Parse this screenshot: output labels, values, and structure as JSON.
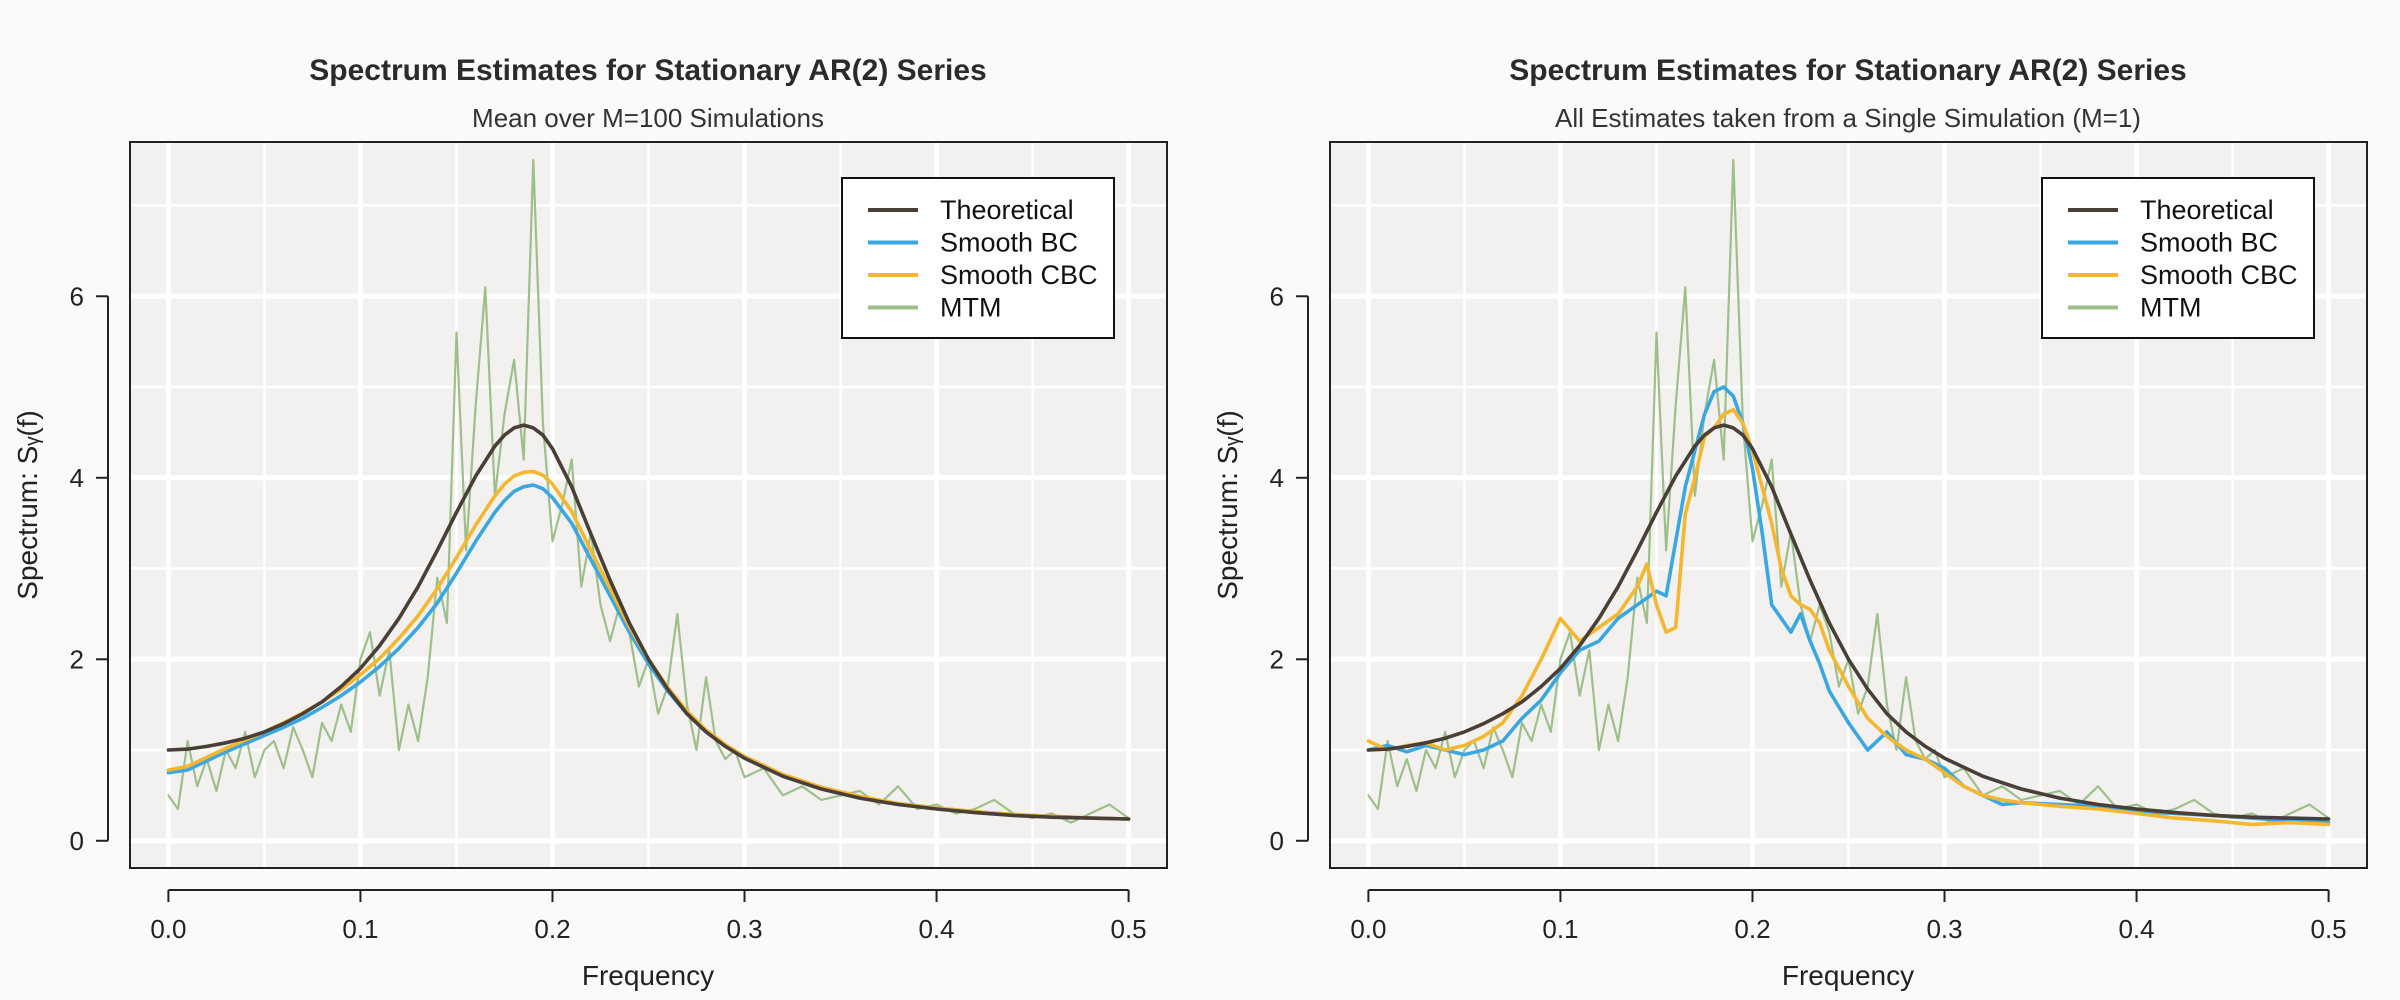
{
  "chart_data": [
    {
      "type": "line",
      "title": "Spectrum Estimates for Stationary AR(2) Series",
      "subtitle": "Mean over M=100 Simulations",
      "xlabel": "Frequency",
      "ylabel": "Spectrum:  Sᵧ(f)",
      "xlim": [
        -0.02,
        0.52
      ],
      "ylim": [
        -0.3,
        7.7
      ],
      "xticks": [
        0.0,
        0.1,
        0.2,
        0.3,
        0.4,
        0.5
      ],
      "xtick_labels": [
        "0.0",
        "0.1",
        "0.2",
        "0.3",
        "0.4",
        "0.5"
      ],
      "yticks": [
        0,
        2,
        4,
        6
      ],
      "ytick_labels": [
        "0",
        "2",
        "4",
        "6"
      ],
      "grid": true,
      "legend_position": "top-right",
      "series": [
        {
          "name": "MTM",
          "color": "#9dbf8a",
          "x": [
            0.0,
            0.005,
            0.01,
            0.015,
            0.02,
            0.025,
            0.03,
            0.035,
            0.04,
            0.045,
            0.05,
            0.055,
            0.06,
            0.065,
            0.07,
            0.075,
            0.08,
            0.085,
            0.09,
            0.095,
            0.1,
            0.105,
            0.11,
            0.115,
            0.12,
            0.125,
            0.13,
            0.135,
            0.14,
            0.145,
            0.15,
            0.155,
            0.16,
            0.165,
            0.17,
            0.175,
            0.18,
            0.185,
            0.19,
            0.195,
            0.2,
            0.205,
            0.21,
            0.215,
            0.22,
            0.225,
            0.23,
            0.235,
            0.24,
            0.245,
            0.25,
            0.255,
            0.26,
            0.265,
            0.27,
            0.275,
            0.28,
            0.285,
            0.29,
            0.295,
            0.3,
            0.31,
            0.32,
            0.33,
            0.34,
            0.35,
            0.36,
            0.37,
            0.38,
            0.39,
            0.4,
            0.41,
            0.42,
            0.43,
            0.44,
            0.45,
            0.46,
            0.47,
            0.48,
            0.49,
            0.5
          ],
          "values": [
            0.5,
            0.35,
            1.1,
            0.6,
            0.9,
            0.55,
            1.0,
            0.8,
            1.2,
            0.7,
            1.0,
            1.1,
            0.8,
            1.25,
            1.0,
            0.7,
            1.3,
            1.1,
            1.5,
            1.2,
            2.0,
            2.3,
            1.6,
            2.1,
            1.0,
            1.5,
            1.1,
            1.8,
            2.9,
            2.4,
            5.6,
            3.2,
            4.8,
            6.1,
            3.8,
            4.7,
            5.3,
            4.2,
            7.5,
            4.6,
            3.3,
            3.7,
            4.2,
            2.8,
            3.4,
            2.6,
            2.2,
            2.6,
            2.3,
            1.7,
            2.0,
            1.4,
            1.7,
            2.5,
            1.5,
            1.0,
            1.8,
            1.1,
            0.9,
            1.0,
            0.7,
            0.8,
            0.5,
            0.6,
            0.45,
            0.5,
            0.55,
            0.4,
            0.6,
            0.35,
            0.4,
            0.3,
            0.35,
            0.45,
            0.3,
            0.25,
            0.3,
            0.2,
            0.3,
            0.4,
            0.25
          ]
        },
        {
          "name": "Smooth BC",
          "color": "#3aa7e0",
          "x": [
            0.0,
            0.01,
            0.02,
            0.03,
            0.04,
            0.05,
            0.06,
            0.07,
            0.08,
            0.09,
            0.1,
            0.11,
            0.12,
            0.13,
            0.14,
            0.15,
            0.16,
            0.17,
            0.175,
            0.18,
            0.185,
            0.19,
            0.195,
            0.2,
            0.21,
            0.22,
            0.23,
            0.24,
            0.25,
            0.26,
            0.27,
            0.28,
            0.29,
            0.3,
            0.32,
            0.34,
            0.36,
            0.38,
            0.4,
            0.42,
            0.44,
            0.46,
            0.48,
            0.5
          ],
          "values": [
            0.75,
            0.78,
            0.88,
            0.98,
            1.07,
            1.16,
            1.25,
            1.35,
            1.47,
            1.6,
            1.75,
            1.92,
            2.12,
            2.35,
            2.62,
            2.95,
            3.3,
            3.62,
            3.75,
            3.85,
            3.9,
            3.92,
            3.88,
            3.78,
            3.5,
            3.1,
            2.7,
            2.3,
            1.95,
            1.65,
            1.4,
            1.2,
            1.05,
            0.92,
            0.72,
            0.58,
            0.48,
            0.41,
            0.36,
            0.32,
            0.29,
            0.27,
            0.25,
            0.24
          ]
        },
        {
          "name": "Smooth CBC",
          "color": "#f5b730",
          "x": [
            0.0,
            0.01,
            0.02,
            0.03,
            0.04,
            0.05,
            0.06,
            0.07,
            0.08,
            0.09,
            0.1,
            0.11,
            0.12,
            0.13,
            0.14,
            0.15,
            0.16,
            0.17,
            0.175,
            0.18,
            0.185,
            0.19,
            0.195,
            0.2,
            0.21,
            0.22,
            0.23,
            0.24,
            0.25,
            0.26,
            0.27,
            0.28,
            0.29,
            0.3,
            0.32,
            0.34,
            0.36,
            0.38,
            0.4,
            0.42,
            0.44,
            0.46,
            0.48,
            0.5
          ],
          "values": [
            0.78,
            0.82,
            0.92,
            1.02,
            1.11,
            1.2,
            1.3,
            1.41,
            1.53,
            1.67,
            1.83,
            2.01,
            2.23,
            2.48,
            2.78,
            3.12,
            3.48,
            3.8,
            3.93,
            4.02,
            4.06,
            4.07,
            4.03,
            3.93,
            3.63,
            3.2,
            2.78,
            2.36,
            2.0,
            1.69,
            1.43,
            1.22,
            1.06,
            0.93,
            0.73,
            0.59,
            0.49,
            0.41,
            0.36,
            0.32,
            0.29,
            0.27,
            0.25,
            0.24
          ]
        },
        {
          "name": "Theoretical",
          "color": "#4a3f36",
          "x": [
            0.0,
            0.01,
            0.02,
            0.03,
            0.04,
            0.05,
            0.06,
            0.07,
            0.08,
            0.09,
            0.1,
            0.11,
            0.12,
            0.13,
            0.14,
            0.15,
            0.16,
            0.17,
            0.175,
            0.18,
            0.185,
            0.19,
            0.195,
            0.2,
            0.21,
            0.22,
            0.23,
            0.24,
            0.25,
            0.26,
            0.27,
            0.28,
            0.29,
            0.3,
            0.32,
            0.34,
            0.36,
            0.38,
            0.4,
            0.42,
            0.44,
            0.46,
            0.48,
            0.5
          ],
          "values": [
            1.0,
            1.01,
            1.04,
            1.08,
            1.13,
            1.2,
            1.29,
            1.4,
            1.53,
            1.7,
            1.9,
            2.15,
            2.45,
            2.8,
            3.2,
            3.62,
            4.02,
            4.35,
            4.47,
            4.55,
            4.58,
            4.55,
            4.47,
            4.32,
            3.9,
            3.38,
            2.87,
            2.4,
            2.0,
            1.67,
            1.4,
            1.2,
            1.04,
            0.91,
            0.71,
            0.57,
            0.47,
            0.4,
            0.35,
            0.31,
            0.28,
            0.26,
            0.25,
            0.24
          ]
        }
      ]
    },
    {
      "type": "line",
      "title": "Spectrum Estimates for Stationary AR(2) Series",
      "subtitle": "All Estimates taken from a Single Simulation (M=1)",
      "xlabel": "Frequency",
      "ylabel": "Spectrum:  Sᵧ(f)",
      "xlim": [
        -0.02,
        0.52
      ],
      "ylim": [
        -0.3,
        7.7
      ],
      "xticks": [
        0.0,
        0.1,
        0.2,
        0.3,
        0.4,
        0.5
      ],
      "xtick_labels": [
        "0.0",
        "0.1",
        "0.2",
        "0.3",
        "0.4",
        "0.5"
      ],
      "yticks": [
        0,
        2,
        4,
        6
      ],
      "ytick_labels": [
        "0",
        "2",
        "4",
        "6"
      ],
      "grid": true,
      "legend_position": "top-right",
      "series": [
        {
          "name": "MTM",
          "color": "#9dbf8a",
          "x": [
            0.0,
            0.005,
            0.01,
            0.015,
            0.02,
            0.025,
            0.03,
            0.035,
            0.04,
            0.045,
            0.05,
            0.055,
            0.06,
            0.065,
            0.07,
            0.075,
            0.08,
            0.085,
            0.09,
            0.095,
            0.1,
            0.105,
            0.11,
            0.115,
            0.12,
            0.125,
            0.13,
            0.135,
            0.14,
            0.145,
            0.15,
            0.155,
            0.16,
            0.165,
            0.17,
            0.175,
            0.18,
            0.185,
            0.19,
            0.195,
            0.2,
            0.205,
            0.21,
            0.215,
            0.22,
            0.225,
            0.23,
            0.235,
            0.24,
            0.245,
            0.25,
            0.255,
            0.26,
            0.265,
            0.27,
            0.275,
            0.28,
            0.285,
            0.29,
            0.295,
            0.3,
            0.31,
            0.32,
            0.33,
            0.34,
            0.35,
            0.36,
            0.37,
            0.38,
            0.39,
            0.4,
            0.41,
            0.42,
            0.43,
            0.44,
            0.45,
            0.46,
            0.47,
            0.48,
            0.49,
            0.5
          ],
          "values": [
            0.5,
            0.35,
            1.1,
            0.6,
            0.9,
            0.55,
            1.0,
            0.8,
            1.2,
            0.7,
            1.0,
            1.1,
            0.8,
            1.25,
            1.0,
            0.7,
            1.3,
            1.1,
            1.5,
            1.2,
            2.0,
            2.3,
            1.6,
            2.1,
            1.0,
            1.5,
            1.1,
            1.8,
            2.9,
            2.4,
            5.6,
            3.2,
            4.8,
            6.1,
            3.8,
            4.7,
            5.3,
            4.2,
            7.5,
            4.6,
            3.3,
            3.7,
            4.2,
            2.8,
            3.4,
            2.6,
            2.2,
            2.6,
            2.3,
            1.7,
            2.0,
            1.4,
            1.7,
            2.5,
            1.5,
            1.0,
            1.8,
            1.1,
            0.9,
            1.0,
            0.7,
            0.8,
            0.5,
            0.6,
            0.45,
            0.5,
            0.55,
            0.4,
            0.6,
            0.35,
            0.4,
            0.3,
            0.35,
            0.45,
            0.3,
            0.25,
            0.3,
            0.2,
            0.3,
            0.4,
            0.25
          ]
        },
        {
          "name": "Smooth BC",
          "color": "#3aa7e0",
          "x": [
            0.0,
            0.01,
            0.02,
            0.03,
            0.04,
            0.05,
            0.06,
            0.07,
            0.08,
            0.09,
            0.1,
            0.11,
            0.12,
            0.13,
            0.14,
            0.15,
            0.155,
            0.16,
            0.165,
            0.17,
            0.175,
            0.18,
            0.185,
            0.19,
            0.195,
            0.2,
            0.205,
            0.21,
            0.215,
            0.22,
            0.225,
            0.23,
            0.235,
            0.24,
            0.25,
            0.26,
            0.27,
            0.28,
            0.29,
            0.3,
            0.31,
            0.32,
            0.33,
            0.34,
            0.36,
            0.38,
            0.4,
            0.42,
            0.44,
            0.46,
            0.48,
            0.5
          ],
          "values": [
            1.0,
            1.05,
            0.98,
            1.05,
            1.0,
            0.95,
            1.0,
            1.1,
            1.35,
            1.55,
            1.85,
            2.1,
            2.2,
            2.45,
            2.6,
            2.75,
            2.7,
            3.3,
            3.9,
            4.3,
            4.7,
            4.95,
            5.0,
            4.9,
            4.6,
            4.1,
            3.4,
            2.6,
            2.45,
            2.3,
            2.5,
            2.2,
            1.95,
            1.65,
            1.3,
            1.0,
            1.2,
            0.95,
            0.9,
            0.8,
            0.6,
            0.5,
            0.4,
            0.42,
            0.4,
            0.38,
            0.32,
            0.3,
            0.28,
            0.25,
            0.22,
            0.2
          ]
        },
        {
          "name": "Smooth CBC",
          "color": "#f5b730",
          "x": [
            0.0,
            0.01,
            0.02,
            0.03,
            0.04,
            0.05,
            0.06,
            0.07,
            0.08,
            0.09,
            0.1,
            0.11,
            0.12,
            0.13,
            0.14,
            0.145,
            0.15,
            0.155,
            0.16,
            0.165,
            0.17,
            0.175,
            0.18,
            0.185,
            0.19,
            0.195,
            0.2,
            0.205,
            0.21,
            0.215,
            0.22,
            0.225,
            0.23,
            0.235,
            0.24,
            0.25,
            0.26,
            0.27,
            0.28,
            0.29,
            0.3,
            0.31,
            0.32,
            0.33,
            0.34,
            0.36,
            0.38,
            0.4,
            0.42,
            0.44,
            0.46,
            0.48,
            0.5
          ],
          "values": [
            1.1,
            1.0,
            1.05,
            1.08,
            1.0,
            1.05,
            1.15,
            1.3,
            1.6,
            2.0,
            2.45,
            2.2,
            2.35,
            2.5,
            2.8,
            3.05,
            2.6,
            2.3,
            2.35,
            3.6,
            4.0,
            4.45,
            4.55,
            4.7,
            4.75,
            4.6,
            4.3,
            3.9,
            3.5,
            3.0,
            2.7,
            2.6,
            2.55,
            2.4,
            2.1,
            1.7,
            1.35,
            1.15,
            1.0,
            0.9,
            0.75,
            0.6,
            0.5,
            0.45,
            0.42,
            0.38,
            0.35,
            0.3,
            0.25,
            0.22,
            0.18,
            0.2,
            0.18
          ]
        },
        {
          "name": "Theoretical",
          "color": "#4a3f36",
          "x": [
            0.0,
            0.01,
            0.02,
            0.03,
            0.04,
            0.05,
            0.06,
            0.07,
            0.08,
            0.09,
            0.1,
            0.11,
            0.12,
            0.13,
            0.14,
            0.15,
            0.16,
            0.17,
            0.175,
            0.18,
            0.185,
            0.19,
            0.195,
            0.2,
            0.21,
            0.22,
            0.23,
            0.24,
            0.25,
            0.26,
            0.27,
            0.28,
            0.29,
            0.3,
            0.32,
            0.34,
            0.36,
            0.38,
            0.4,
            0.42,
            0.44,
            0.46,
            0.48,
            0.5
          ],
          "values": [
            1.0,
            1.01,
            1.04,
            1.08,
            1.13,
            1.2,
            1.29,
            1.4,
            1.53,
            1.7,
            1.9,
            2.15,
            2.45,
            2.8,
            3.2,
            3.62,
            4.02,
            4.35,
            4.47,
            4.55,
            4.58,
            4.55,
            4.47,
            4.32,
            3.9,
            3.38,
            2.87,
            2.4,
            2.0,
            1.67,
            1.4,
            1.2,
            1.04,
            0.91,
            0.71,
            0.57,
            0.47,
            0.4,
            0.35,
            0.31,
            0.28,
            0.26,
            0.25,
            0.24
          ]
        }
      ]
    }
  ],
  "legend_order": [
    "Theoretical",
    "Smooth BC",
    "Smooth CBC",
    "MTM"
  ]
}
